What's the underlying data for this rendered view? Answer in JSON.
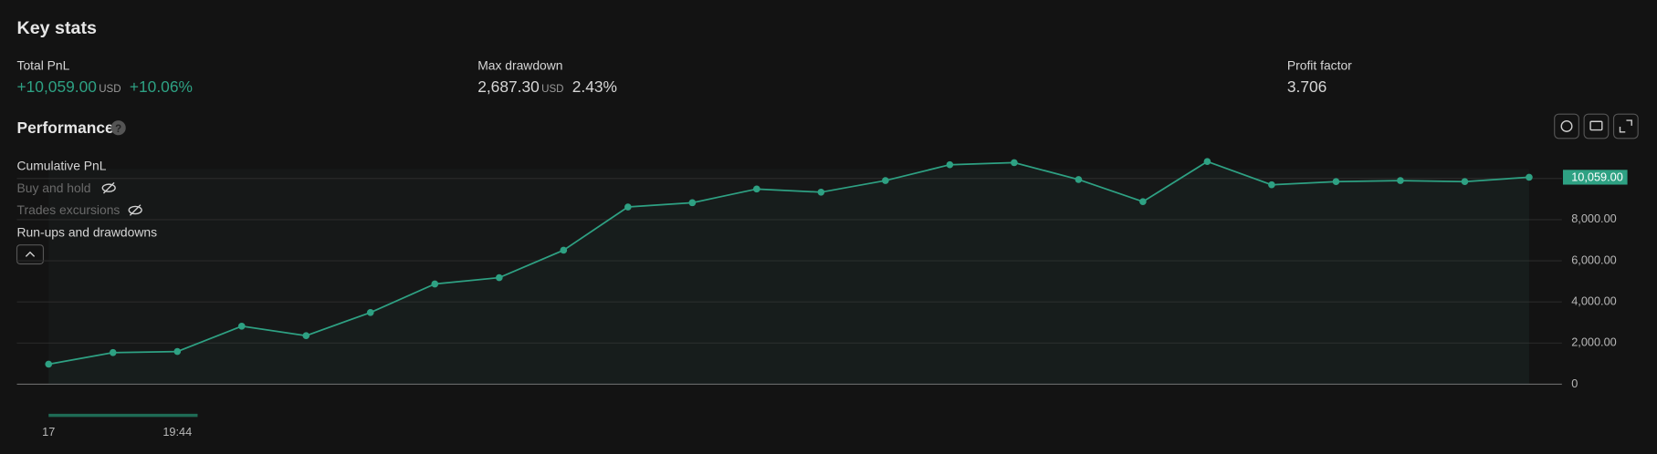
{
  "key_stats": {
    "title": "Key stats",
    "total_pnl": {
      "label": "Total PnL",
      "value": "+10,059.00",
      "unit": "USD",
      "percent": "+10.06%"
    },
    "max_drawdown": {
      "label": "Max drawdown",
      "value": "2,687.30",
      "unit": "USD",
      "percent": "2.43%"
    },
    "profit_factor": {
      "label": "Profit factor",
      "value": "3.706"
    }
  },
  "performance": {
    "title": "Performance",
    "help": "?",
    "toggles": [
      "Buy and hold",
      "Trades excursions",
      "Run-ups and drawdowns"
    ]
  },
  "chart_data": {
    "type": "line",
    "categories": [
      "17",
      null,
      "19:44",
      null,
      null,
      null,
      null,
      null,
      null,
      null,
      null,
      null,
      null,
      null,
      null,
      null,
      null,
      null,
      null,
      null,
      null,
      null,
      null,
      null
    ],
    "series": [
      {
        "name": "Cumulative PnL",
        "color": "#2ea183",
        "values": [
          974,
          1538,
          1590,
          2821,
          2359,
          3487,
          4872,
          5179,
          6513,
          8615,
          8821,
          9487,
          9333,
          9897,
          10667,
          10769,
          9949,
          8872,
          10821,
          9692,
          9846,
          9897,
          9846,
          10059
        ],
        "value_labels": [
          null,
          null,
          null,
          null,
          null,
          null,
          null,
          null,
          null,
          null,
          null,
          null,
          null,
          null,
          null,
          null,
          null,
          null,
          null,
          null,
          null,
          null,
          null,
          "10,059.00"
        ]
      }
    ],
    "ylim": [
      0,
      10000
    ],
    "yticks": [
      0,
      {
        "value": 2000,
        "label": "2,000.00"
      },
      {
        "value": 4000,
        "label": "4,000.00"
      },
      {
        "value": 6000,
        "label": "6,000.00"
      },
      {
        "value": 8000,
        "label": "8,000.00"
      }
    ],
    "grid": true
  }
}
